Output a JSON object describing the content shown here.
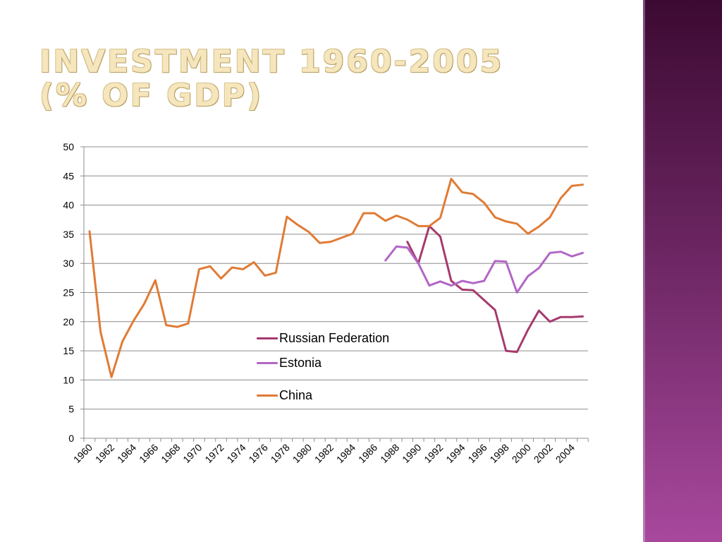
{
  "slide": {
    "title_line1": "Investment 1960-2005",
    "title_line2": "(% of GDP)"
  },
  "chart_data": {
    "type": "line",
    "title": "",
    "xlabel": "",
    "ylabel": "",
    "ylim": [
      0,
      50
    ],
    "yticks": [
      0,
      5,
      10,
      15,
      20,
      25,
      30,
      35,
      40,
      45,
      50
    ],
    "xlim": [
      1960,
      2005
    ],
    "xticks": [
      1960,
      1962,
      1964,
      1966,
      1968,
      1970,
      1972,
      1974,
      1976,
      1978,
      1980,
      1982,
      1984,
      1986,
      1988,
      1990,
      1992,
      1994,
      1996,
      1998,
      2000,
      2002,
      2004
    ],
    "grid": "horizontal",
    "legend_position": "center",
    "series": [
      {
        "name": "Russian Federation",
        "color": "#a63a6e",
        "points": [
          [
            1989,
            33.7
          ],
          [
            1990,
            30.0
          ],
          [
            1991,
            36.4
          ],
          [
            1992,
            34.6
          ],
          [
            1993,
            27.0
          ],
          [
            1994,
            25.5
          ],
          [
            1995,
            25.4
          ],
          [
            1996,
            23.7
          ],
          [
            1997,
            22.0
          ],
          [
            1998,
            15.0
          ],
          [
            1999,
            14.8
          ],
          [
            2000,
            18.6
          ],
          [
            2001,
            21.9
          ],
          [
            2002,
            20.0
          ],
          [
            2003,
            20.8
          ],
          [
            2004,
            20.8
          ],
          [
            2005,
            20.9
          ]
        ]
      },
      {
        "name": "Estonia",
        "color": "#b266c6",
        "points": [
          [
            1987,
            30.5
          ],
          [
            1988,
            32.9
          ],
          [
            1989,
            32.7
          ],
          [
            1990,
            30.0
          ],
          [
            1991,
            26.2
          ],
          [
            1992,
            26.9
          ],
          [
            1993,
            26.2
          ],
          [
            1994,
            27.0
          ],
          [
            1995,
            26.6
          ],
          [
            1996,
            27.0
          ],
          [
            1997,
            30.4
          ],
          [
            1998,
            30.3
          ],
          [
            1999,
            25.0
          ],
          [
            2000,
            27.8
          ],
          [
            2001,
            29.2
          ],
          [
            2002,
            31.8
          ],
          [
            2003,
            32.0
          ],
          [
            2004,
            31.2
          ],
          [
            2005,
            31.8
          ]
        ]
      },
      {
        "name": "China",
        "color": "#e07b35",
        "points": [
          [
            1960,
            35.5
          ],
          [
            1961,
            18.3
          ],
          [
            1962,
            10.5
          ],
          [
            1963,
            16.6
          ],
          [
            1964,
            20.1
          ],
          [
            1965,
            23.1
          ],
          [
            1966,
            27.1
          ],
          [
            1967,
            19.4
          ],
          [
            1968,
            19.1
          ],
          [
            1969,
            19.7
          ],
          [
            1970,
            29.0
          ],
          [
            1971,
            29.5
          ],
          [
            1972,
            27.4
          ],
          [
            1973,
            29.3
          ],
          [
            1974,
            29.0
          ],
          [
            1975,
            30.2
          ],
          [
            1976,
            27.9
          ],
          [
            1977,
            28.4
          ],
          [
            1978,
            38.0
          ],
          [
            1979,
            36.6
          ],
          [
            1980,
            35.4
          ],
          [
            1981,
            33.5
          ],
          [
            1982,
            33.7
          ],
          [
            1983,
            34.4
          ],
          [
            1984,
            35.1
          ],
          [
            1985,
            38.6
          ],
          [
            1986,
            38.6
          ],
          [
            1987,
            37.3
          ],
          [
            1988,
            38.2
          ],
          [
            1989,
            37.5
          ],
          [
            1990,
            36.4
          ],
          [
            1991,
            36.4
          ],
          [
            1992,
            37.8
          ],
          [
            1993,
            44.5
          ],
          [
            1994,
            42.2
          ],
          [
            1995,
            41.9
          ],
          [
            1996,
            40.4
          ],
          [
            1997,
            37.9
          ],
          [
            1998,
            37.2
          ],
          [
            1999,
            36.8
          ],
          [
            2000,
            35.1
          ],
          [
            2001,
            36.3
          ],
          [
            2002,
            37.9
          ],
          [
            2003,
            41.2
          ],
          [
            2004,
            43.3
          ],
          [
            2005,
            43.5
          ]
        ]
      }
    ]
  }
}
